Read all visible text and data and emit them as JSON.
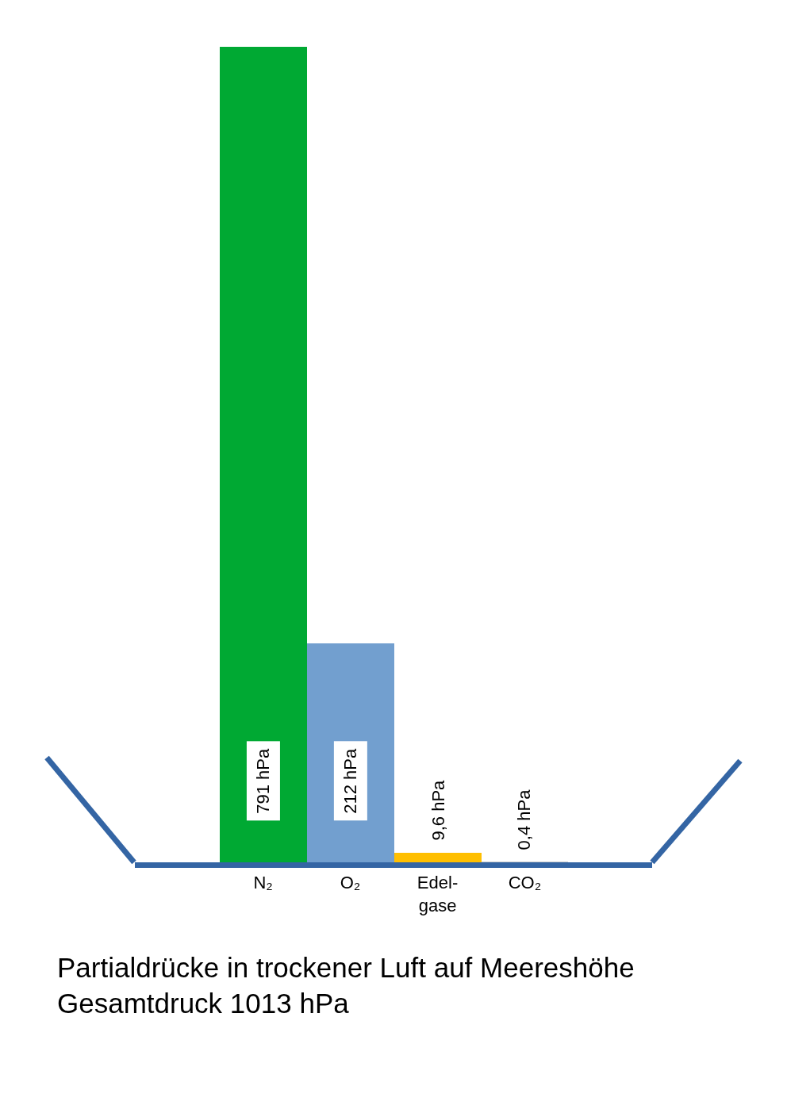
{
  "chart_data": {
    "type": "bar",
    "title": "Partialdrücke in trockener Luft auf Meereshöhe",
    "subtitle": "Gesamtdruck 1013 hPa",
    "categories": [
      "N₂",
      "O₂",
      "Edel-gase",
      "CO₂"
    ],
    "values": [
      791,
      212,
      9.6,
      0.4
    ],
    "colors": [
      "#00a933",
      "#729fcf",
      "#ffbf00",
      "#cccccc"
    ],
    "value_labels": [
      "791 hPa",
      "212 hPa",
      "9,6 hPa",
      "0,4 hPa"
    ],
    "grid": false,
    "legend": false,
    "tick_labels": "x"
  }
}
